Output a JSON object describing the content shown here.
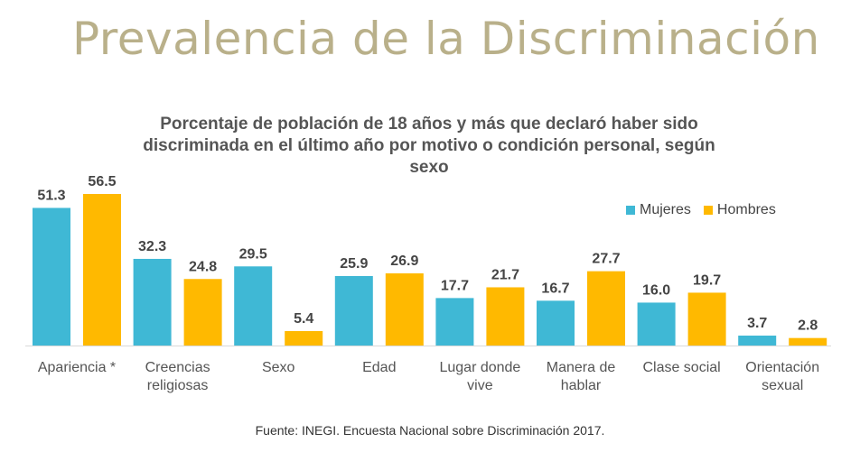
{
  "slide_title": "Prevalencia de la Discriminación",
  "source": "Fuente: INEGI. Encuesta Nacional sobre Discriminación 2017.",
  "chart_data": {
    "type": "bar",
    "title_lines": [
      "Porcentaje de población de 18 años y más que declaró haber sido",
      "discriminada en el último año por motivo o condición personal, según",
      "sexo"
    ],
    "categories": [
      [
        "Apariencia *"
      ],
      [
        "Creencias",
        "religiosas"
      ],
      [
        "Sexo"
      ],
      [
        "Edad"
      ],
      [
        "Lugar donde",
        "vive"
      ],
      [
        "Manera de",
        "hablar"
      ],
      [
        "Clase social"
      ],
      [
        "Orientación",
        "sexual"
      ]
    ],
    "series": [
      {
        "name": "Mujeres",
        "color": "#3fb8d5",
        "values": [
          51.3,
          32.3,
          29.5,
          25.9,
          17.7,
          16.7,
          16.0,
          3.7
        ]
      },
      {
        "name": "Hombres",
        "color": "#ffb900",
        "values": [
          56.5,
          24.8,
          5.4,
          26.9,
          21.7,
          27.7,
          19.7,
          2.8
        ]
      }
    ],
    "ylim": [
      0,
      60
    ],
    "legend_position": "top-right",
    "grid": false
  }
}
